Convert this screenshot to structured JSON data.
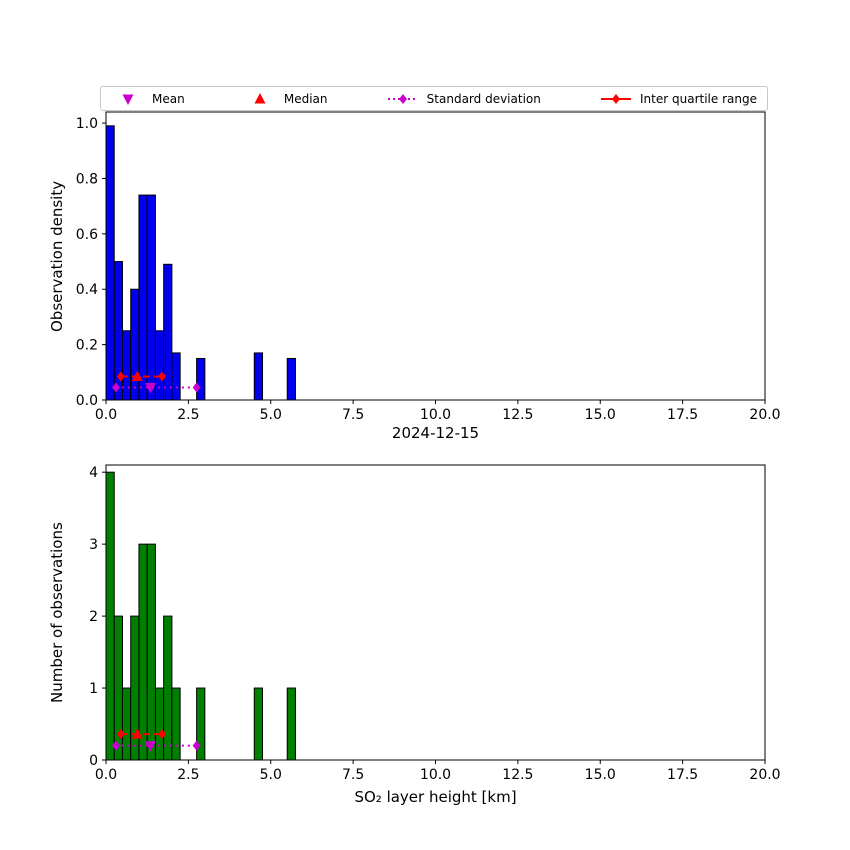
{
  "figure": {
    "background": "#ffffff"
  },
  "legend": {
    "items": [
      {
        "label": "Mean",
        "marker": "triangle-down",
        "color": "#cc00cc",
        "line": "none"
      },
      {
        "label": "Median",
        "marker": "triangle-up",
        "color": "#ff0000",
        "line": "none"
      },
      {
        "label": "Standard deviation",
        "marker": "diamond",
        "color": "#cc00cc",
        "line": "dotted"
      },
      {
        "label": "Inter quartile range",
        "marker": "diamond",
        "color": "#ff0000",
        "line": "solid"
      }
    ]
  },
  "chart_data": [
    {
      "type": "bar",
      "id": "observation-density-histogram",
      "title": "",
      "ylabel": "Observation density",
      "xlabel": "",
      "bar_color": "#0000ee",
      "edge_color": "#000000",
      "xlim": [
        0,
        20
      ],
      "ylim": [
        0,
        1.04
      ],
      "bin_width": 0.25,
      "x": [
        0,
        0.25,
        0.5,
        0.75,
        1.0,
        1.25,
        1.5,
        1.75,
        2.0,
        2.75,
        4.5,
        5.5
      ],
      "values": [
        0.99,
        0.5,
        0.25,
        0.4,
        0.74,
        0.74,
        0.25,
        0.49,
        0.17,
        0.15,
        0.17,
        0.15
      ],
      "xticks": {
        "values": [
          0,
          2.5,
          5,
          7.5,
          10,
          12.5,
          15,
          17.5,
          20
        ],
        "labels": [
          "0.0",
          "2.5",
          "5.0",
          "7.5",
          "10.0",
          "12.5",
          "15.0",
          "17.5",
          "20.0"
        ]
      },
      "yticks": {
        "values": [
          0,
          0.2,
          0.4,
          0.6,
          0.8,
          1.0
        ],
        "labels": [
          "0.0",
          "0.2",
          "0.4",
          "0.6",
          "0.8",
          "1.0"
        ]
      },
      "stats_y": {
        "iqr_line": 0.085,
        "std_line": 0.045
      }
    },
    {
      "type": "bar",
      "id": "observation-count-histogram",
      "title": "2024-12-15",
      "ylabel": "Number of observations",
      "xlabel": "SO₂ layer height [km]",
      "bar_color": "#008000",
      "edge_color": "#000000",
      "xlim": [
        0,
        20
      ],
      "ylim": [
        0,
        4.1
      ],
      "bin_width": 0.25,
      "x": [
        0,
        0.25,
        0.5,
        0.75,
        1.0,
        1.25,
        1.5,
        1.75,
        2.0,
        2.75,
        4.5,
        5.5
      ],
      "values": [
        4,
        2,
        1,
        2,
        3,
        3,
        1,
        2,
        1,
        1,
        1,
        1
      ],
      "xticks": {
        "values": [
          0,
          2.5,
          5,
          7.5,
          10,
          12.5,
          15,
          17.5,
          20
        ],
        "labels": [
          "0.0",
          "2.5",
          "5.0",
          "7.5",
          "10.0",
          "12.5",
          "15.0",
          "17.5",
          "20.0"
        ]
      },
      "yticks": {
        "values": [
          0,
          1,
          2,
          3,
          4
        ],
        "labels": [
          "0",
          "1",
          "2",
          "3",
          "4"
        ]
      },
      "stats_y": {
        "iqr_line": 0.36,
        "std_line": 0.2
      }
    }
  ],
  "stats_markers": {
    "mean_x": 1.35,
    "median_x": 0.95,
    "iqr_x": [
      0.45,
      1.7
    ],
    "std_x": [
      0.3,
      2.75
    ],
    "mean_color": "#cc00cc",
    "median_color": "#ff0000",
    "std_color": "#cc00cc",
    "iqr_color": "#ff0000"
  }
}
